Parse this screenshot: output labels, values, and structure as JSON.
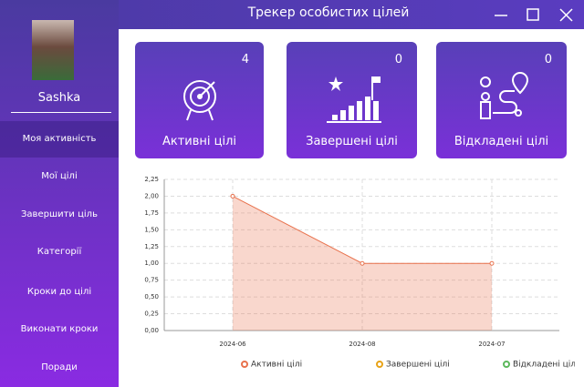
{
  "window": {
    "title": "Трекер особистих цілей"
  },
  "user": {
    "name": "Sashka"
  },
  "nav": [
    "Моя активність",
    "Мої цілі",
    "Завершити ціль",
    "Категорії",
    "Кроки до цілі",
    "Виконати кроки",
    "Поради"
  ],
  "cards": [
    {
      "count": 4,
      "label": "Активні цілі"
    },
    {
      "count": 0,
      "label": "Завершені цілі"
    },
    {
      "count": 0,
      "label": "Відкладені цілі"
    }
  ],
  "chart_data": {
    "type": "line",
    "categories": [
      "2024-06",
      "2024-08",
      "2024-07"
    ],
    "series": [
      {
        "name": "Активні цілі",
        "color": "#e8714c",
        "values": [
          2,
          1,
          1
        ]
      },
      {
        "name": "Завершені цілі",
        "color": "#e8a317",
        "values": [
          null,
          null,
          null
        ]
      },
      {
        "name": "Відкладені цілі",
        "color": "#5cb85c",
        "values": [
          null,
          null,
          null
        ]
      }
    ],
    "ylim": [
      0,
      2.25
    ],
    "yticks": [
      {
        "value": 0,
        "label": "0,00"
      },
      {
        "value": 0.25,
        "label": "0,25"
      },
      {
        "value": 0.5,
        "label": "0,50"
      },
      {
        "value": 0.75,
        "label": "0,75"
      },
      {
        "value": 1,
        "label": "1,00"
      },
      {
        "value": 1.25,
        "label": "1,25"
      },
      {
        "value": 1.5,
        "label": "1,50"
      },
      {
        "value": 1.75,
        "label": "1,75"
      },
      {
        "value": 2,
        "label": "2,00"
      },
      {
        "value": 2.25,
        "label": "2,25"
      }
    ],
    "grid": true,
    "area": true,
    "legend": "bottom"
  }
}
